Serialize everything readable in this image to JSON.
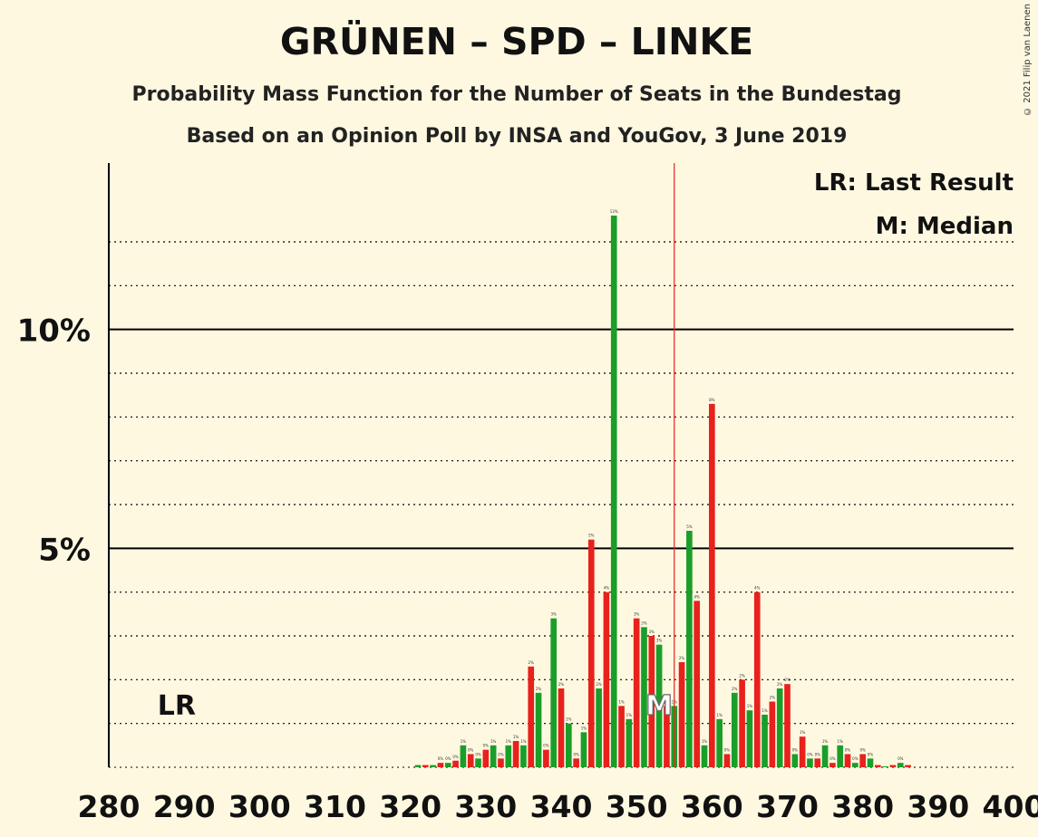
{
  "title": "GRÜNEN – SPD – LINKE",
  "subtitle": "Probability Mass Function for the Number of Seats in the Bundestag",
  "subtitle2": "Based on an Opinion Poll by INSA and YouGov, 3 June 2019",
  "copyright": "© 2021 Filip van Laenen",
  "legend": {
    "last_result": "LR: Last Result",
    "median": "M: Median"
  },
  "markers": {
    "lr_label": "LR",
    "median_label": "M"
  },
  "colors": {
    "background": "#fff8e1",
    "green": "#1a9e2a",
    "red": "#e8211d",
    "majority_line": "#e8211d"
  },
  "chart_data": {
    "type": "bar",
    "title": "GRÜNEN – SPD – LINKE",
    "xlabel": "",
    "ylabel": "",
    "xlim": [
      280,
      400
    ],
    "ylim": [
      0,
      13.8
    ],
    "x_ticks": [
      "280",
      "290",
      "300",
      "310",
      "320",
      "330",
      "340",
      "350",
      "360",
      "370",
      "380",
      "390",
      "400"
    ],
    "y_ticks": [
      {
        "value": 5,
        "label": "5%"
      },
      {
        "value": 10,
        "label": "10%"
      }
    ],
    "majority_line": 355,
    "median": 353,
    "last_result": 289,
    "series": [
      {
        "color": "green",
        "x": [
          321,
          323,
          325,
          327,
          329,
          331,
          333,
          335,
          337,
          339,
          341,
          343,
          345,
          347,
          349,
          351,
          353,
          355,
          357,
          359,
          361,
          363,
          365,
          367,
          369,
          371,
          373,
          375,
          377,
          379,
          381,
          383,
          385
        ],
        "values": [
          0.05,
          0.05,
          0.1,
          0.5,
          0.2,
          0.5,
          0.5,
          0.5,
          1.7,
          3.4,
          1.0,
          0.8,
          1.8,
          12.6,
          1.1,
          3.2,
          2.8,
          1.4,
          5.4,
          0.5,
          1.1,
          1.7,
          1.3,
          1.2,
          1.8,
          0.3,
          0.2,
          0.5,
          0.5,
          0.1,
          0.2,
          0.02,
          0.1
        ]
      },
      {
        "color": "red",
        "x": [
          322,
          324,
          326,
          328,
          330,
          332,
          334,
          336,
          338,
          340,
          342,
          344,
          346,
          348,
          350,
          352,
          354,
          356,
          358,
          360,
          362,
          364,
          366,
          368,
          370,
          372,
          374,
          376,
          378,
          380,
          382,
          384,
          386
        ],
        "values": [
          0.05,
          0.1,
          0.15,
          0.3,
          0.4,
          0.2,
          0.6,
          2.3,
          0.4,
          1.8,
          0.2,
          5.2,
          4.0,
          1.4,
          3.4,
          3.0,
          1.4,
          2.4,
          3.8,
          8.3,
          0.3,
          2.0,
          4.0,
          1.5,
          1.9,
          0.7,
          0.2,
          0.1,
          0.3,
          0.3,
          0.05,
          0.05,
          0.05
        ]
      }
    ]
  }
}
